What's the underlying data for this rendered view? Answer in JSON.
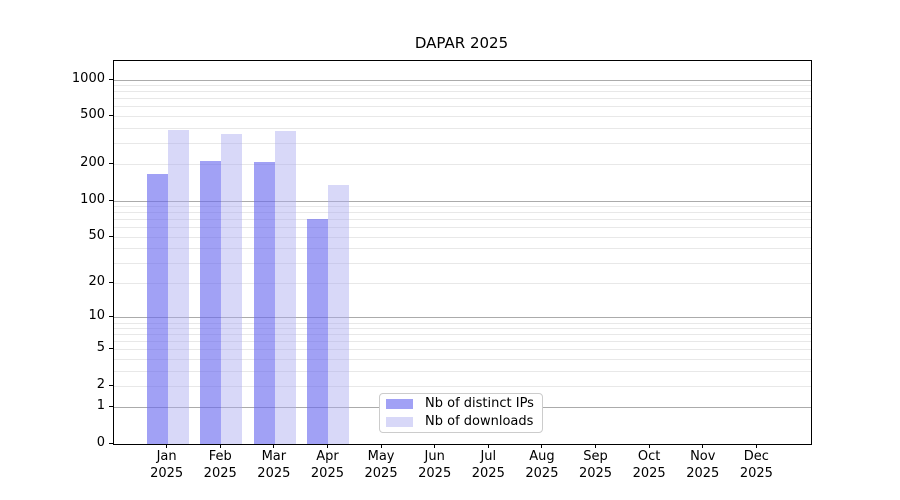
{
  "title": "DAPAR 2025",
  "chart_data": {
    "type": "bar",
    "title": "DAPAR 2025",
    "xlabel": "",
    "ylabel": "",
    "x_categories": [
      "Jan",
      "Feb",
      "Mar",
      "Apr",
      "May",
      "Jun",
      "Jul",
      "Aug",
      "Sep",
      "Oct",
      "Nov",
      "Dec"
    ],
    "x_year": "2025",
    "y_scale": "log1p",
    "ylim": [
      0,
      1420
    ],
    "y_ticks": [
      0,
      1,
      2,
      5,
      10,
      20,
      50,
      100,
      200,
      500,
      1000
    ],
    "y_major_gridlines": [
      1,
      10,
      100,
      1000
    ],
    "y_minor_gridlines": [
      2,
      3,
      4,
      5,
      6,
      7,
      8,
      9,
      20,
      30,
      40,
      50,
      60,
      70,
      80,
      90,
      200,
      300,
      400,
      500,
      600,
      700,
      800,
      900
    ],
    "grid": "on",
    "legend_position": "bottom-center",
    "series": [
      {
        "key": "distinct-ips",
        "name": "Nb of distinct IPs",
        "color": "rgba(103,103,239,0.62)",
        "values": [
          167,
          213,
          207,
          70,
          0,
          0,
          0,
          0,
          0,
          0,
          0,
          0
        ]
      },
      {
        "key": "downloads",
        "name": "Nb of downloads",
        "color": "rgba(168,168,240,0.45)",
        "values": [
          380,
          352,
          378,
          135,
          0,
          0,
          0,
          0,
          0,
          0,
          0,
          0
        ]
      }
    ]
  },
  "colors": {
    "background": "#ffffff",
    "spine": "#000000",
    "major_grid": "#ababab",
    "minor_grid": "#e8e8e8",
    "text": "#000000",
    "legend_border": "#cccccc"
  }
}
